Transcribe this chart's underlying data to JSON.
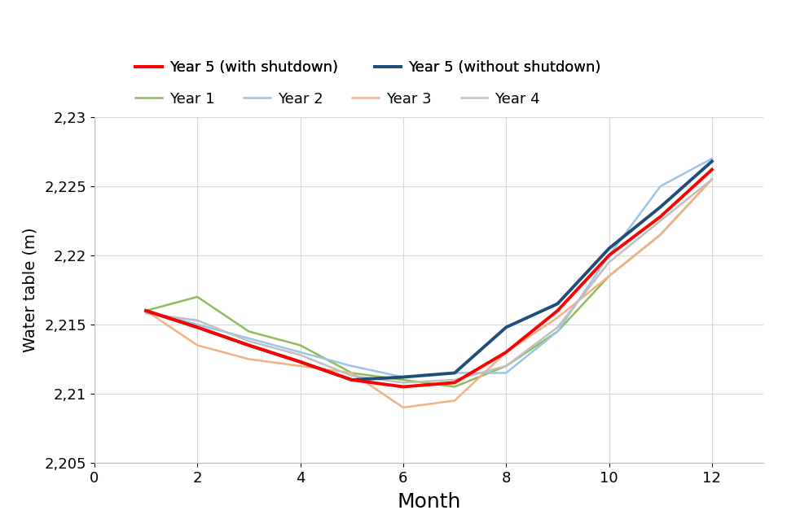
{
  "title": "",
  "xlabel": "Month",
  "ylabel": "Water table (m)",
  "xlim": [
    0,
    13
  ],
  "ylim": [
    2.205,
    2.23
  ],
  "yticks": [
    2.205,
    2.21,
    2.215,
    2.22,
    2.225,
    2.23
  ],
  "ytick_labels": [
    "2,205",
    "2,21",
    "2,215",
    "2,22",
    "2,225",
    "2,23"
  ],
  "xticks": [
    0,
    2,
    4,
    6,
    8,
    10,
    12
  ],
  "months": [
    1,
    2,
    3,
    4,
    5,
    6,
    7,
    8,
    9,
    10,
    11,
    12
  ],
  "series": {
    "Year 1": {
      "color": "#8fbc5a",
      "linewidth": 1.8,
      "zorder": 2,
      "values": [
        2.216,
        2.217,
        2.2145,
        2.2135,
        2.2115,
        2.211,
        2.2105,
        2.212,
        2.2145,
        2.2185,
        2.2215,
        2.2255
      ]
    },
    "Year 2": {
      "color": "#9dc3e6",
      "linewidth": 1.8,
      "zorder": 2,
      "values": [
        2.216,
        2.215,
        2.214,
        2.213,
        2.212,
        2.2112,
        2.2115,
        2.2115,
        2.2145,
        2.22,
        2.225,
        2.227
      ]
    },
    "Year 3": {
      "color": "#f4b183",
      "linewidth": 1.8,
      "zorder": 2,
      "values": [
        2.216,
        2.2135,
        2.2125,
        2.212,
        2.2115,
        2.209,
        2.2095,
        2.213,
        2.2155,
        2.2185,
        2.2215,
        2.2255
      ]
    },
    "Year 4": {
      "color": "#bfbfbf",
      "linewidth": 1.8,
      "zorder": 2,
      "values": [
        2.2158,
        2.2153,
        2.2138,
        2.2128,
        2.2113,
        2.2108,
        2.211,
        2.212,
        2.2148,
        2.2195,
        2.2225,
        2.2255
      ]
    },
    "Year 5 (with shutdown)": {
      "color": "#ff0000",
      "linewidth": 2.8,
      "zorder": 5,
      "values": [
        2.216,
        2.2148,
        2.2135,
        2.2123,
        2.211,
        2.2105,
        2.2108,
        2.213,
        2.216,
        2.22,
        2.2228,
        2.2262
      ]
    },
    "Year 5 (without shutdown)": {
      "color": "#1f4e79",
      "linewidth": 2.8,
      "zorder": 4,
      "values": [
        2.216,
        2.2148,
        2.2135,
        2.2123,
        2.211,
        2.2112,
        2.2115,
        2.2148,
        2.2165,
        2.2205,
        2.2235,
        2.2268
      ]
    }
  },
  "legend_order": [
    "Year 1",
    "Year 2",
    "Year 3",
    "Year 4",
    "Year 5 (with shutdown)",
    "Year 5 (without shutdown)"
  ],
  "background_color": "#ffffff",
  "grid_color": "#d8d8d8"
}
